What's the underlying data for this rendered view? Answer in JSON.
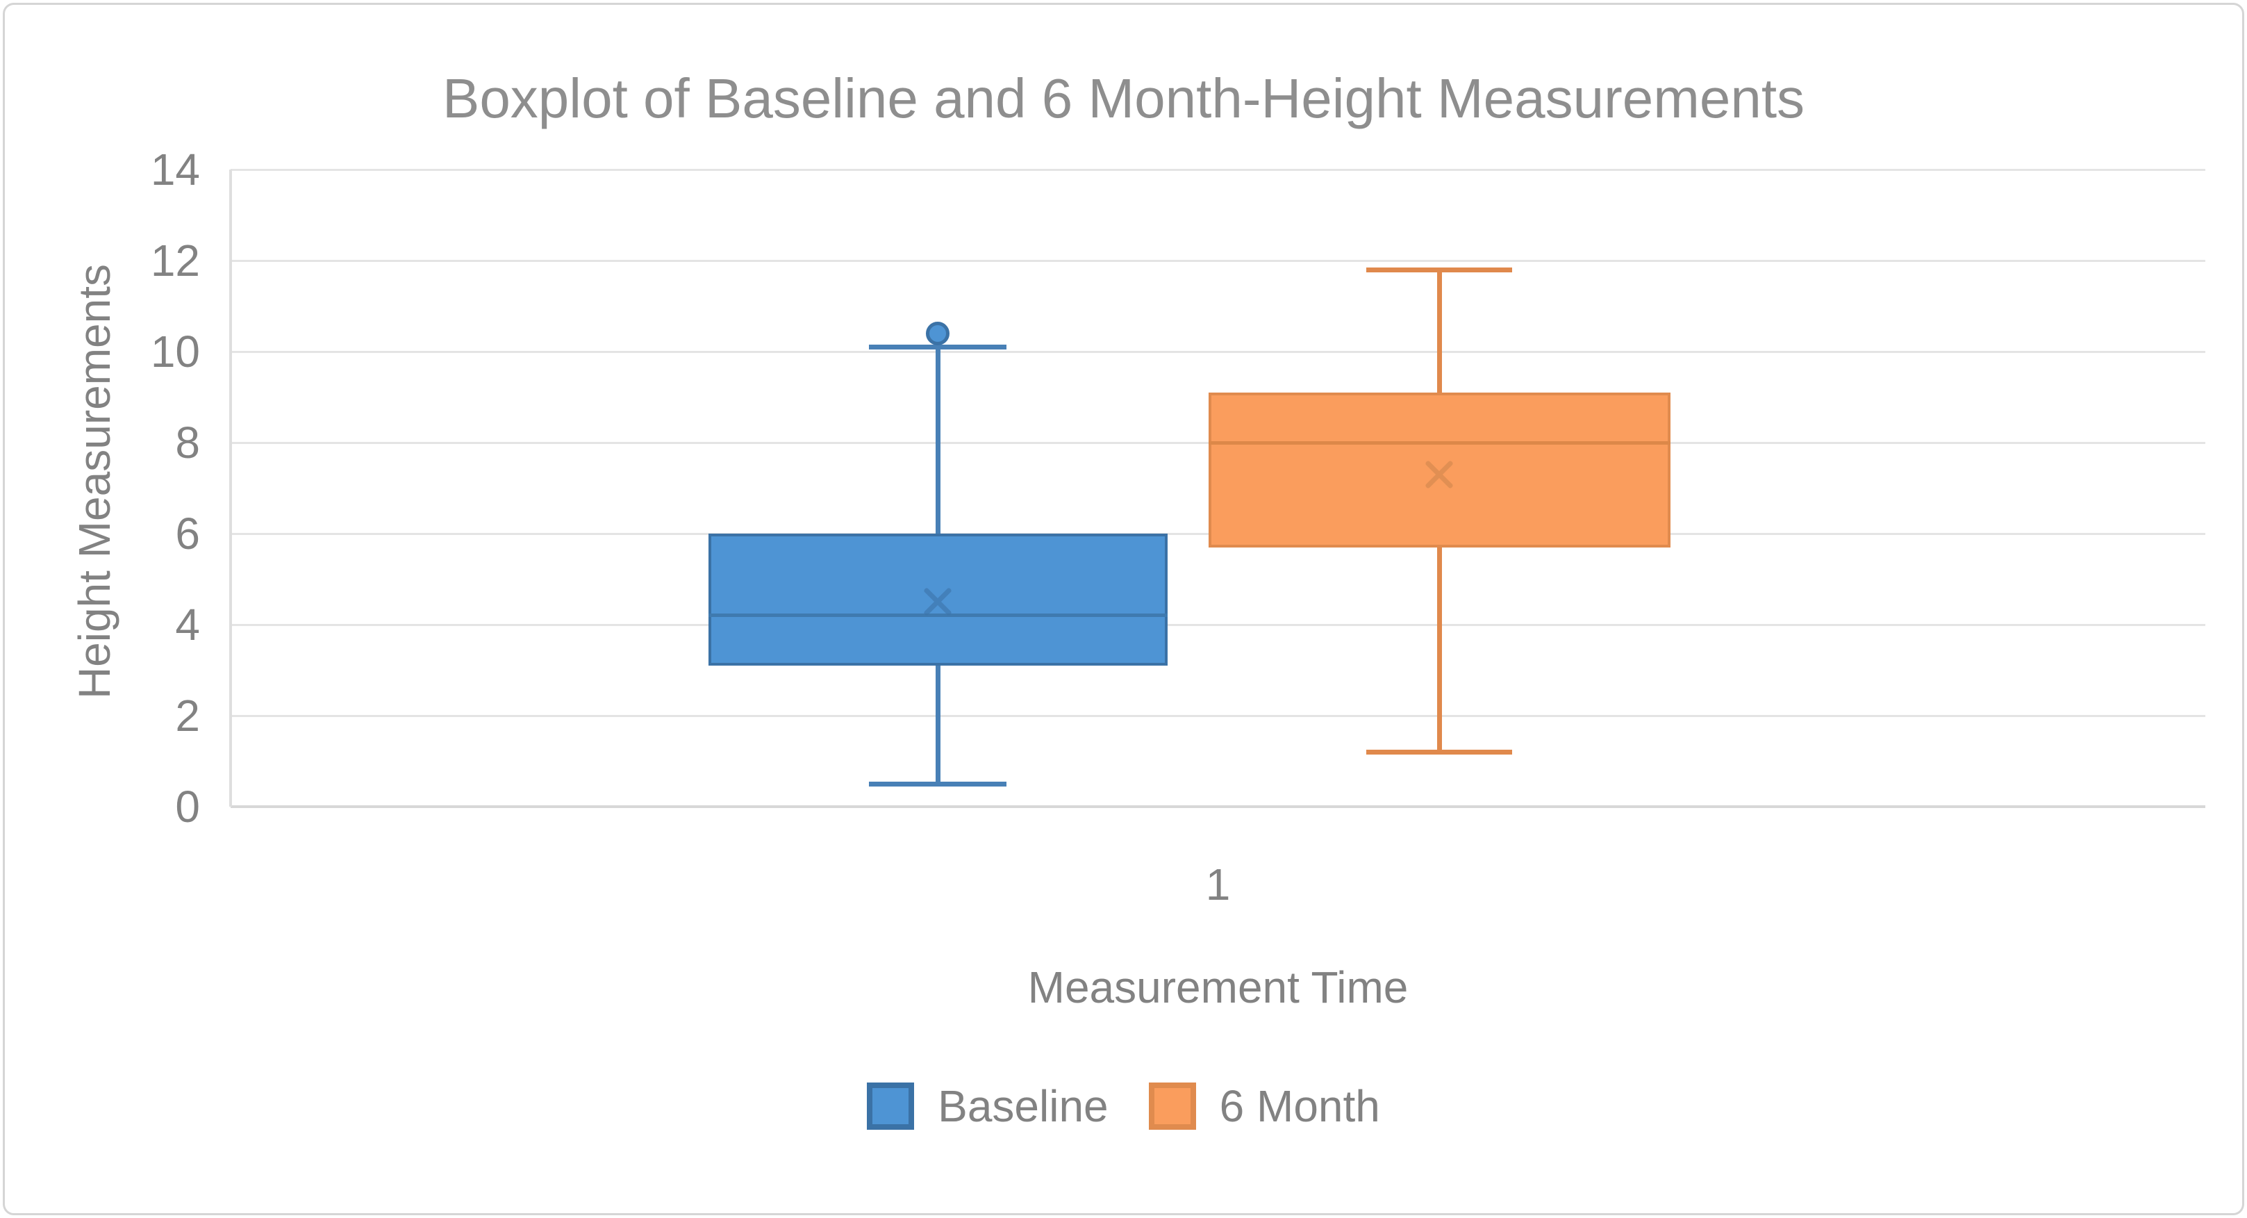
{
  "title": "Boxplot of Baseline and 6 Month-Height Measurements",
  "y_axis": {
    "title": "Height Measurements",
    "ticks": [
      0,
      2,
      4,
      6,
      8,
      10,
      12,
      14
    ]
  },
  "x_axis": {
    "title": "Measurement Time",
    "categories": [
      "1"
    ]
  },
  "legend": {
    "items": [
      {
        "label": "Baseline",
        "fill": "#4e94d4",
        "border": "#3b72a6"
      },
      {
        "label": "6 Month",
        "fill": "#fa9d5d",
        "border": "#e08b4e"
      }
    ]
  },
  "chart_data": {
    "type": "boxplot",
    "title": "Boxplot of Baseline and 6 Month-Height Measurements",
    "xlabel": "Measurement Time",
    "ylabel": "Height Measurements",
    "categories": [
      "1"
    ],
    "ylim": [
      0,
      14
    ],
    "y_tick_step": 2,
    "grid": "horizontal",
    "legend_position": "bottom",
    "series": [
      {
        "name": "Baseline",
        "whisker_low": 0.5,
        "q1": 3.1,
        "median": 4.2,
        "mean": 4.5,
        "q3": 6.0,
        "whisker_high": 10.1,
        "outliers": [
          10.4
        ],
        "fill": "#4e94d4",
        "border": "#3b72a6",
        "whisker_color": "#4880b6",
        "median_color": "#3f7aaf",
        "mean_color": "#3d74a9"
      },
      {
        "name": "6 Month",
        "whisker_low": 1.2,
        "q1": 5.7,
        "median": 8.0,
        "mean": 7.3,
        "q3": 9.1,
        "whisker_high": 11.8,
        "outliers": [],
        "fill": "#fa9d5d",
        "border": "#e08b4e",
        "whisker_color": "#e0894c",
        "median_color": "#dc8849",
        "mean_color": "#d2874e"
      }
    ]
  }
}
